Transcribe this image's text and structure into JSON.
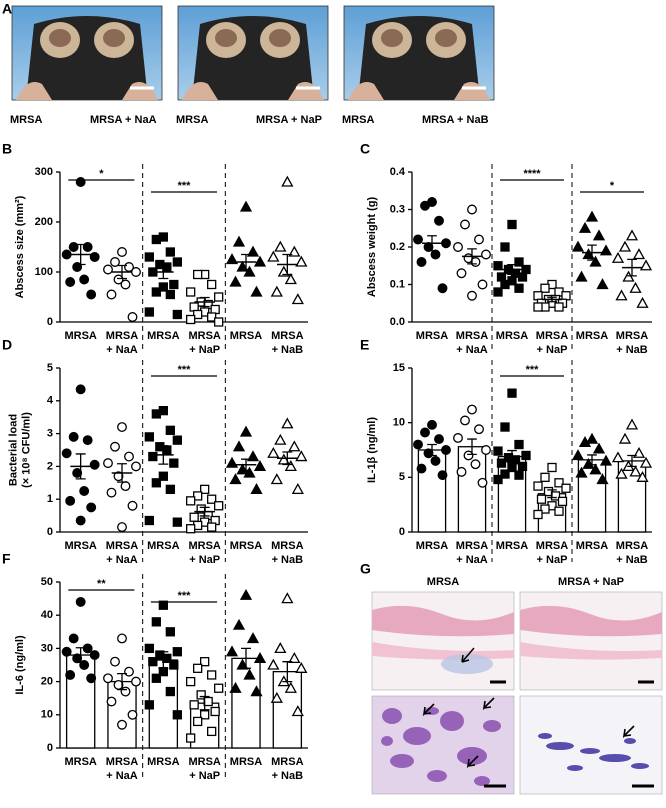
{
  "panel_a": {
    "letter": "A",
    "photos": [
      {
        "left": "MRSA",
        "right": "MRSA + NaA"
      },
      {
        "left": "MRSA",
        "right": "MRSA + NaP"
      },
      {
        "left": "MRSA",
        "right": "MRSA + NaB"
      }
    ]
  },
  "panel_g": {
    "letter": "G",
    "columns": [
      "MRSA",
      "MRSA + NaP"
    ]
  },
  "chart_data": [
    {
      "type": "strip",
      "panel": "B",
      "ylabel": [
        "Abscess size (mm²)"
      ],
      "ylim": [
        0,
        300
      ],
      "yticks": [
        0,
        100,
        200,
        300
      ],
      "groups": [
        {
          "label": [
            "MRSA"
          ],
          "marker": "circle",
          "filled": true,
          "values": [
            280,
            150,
            150,
            135,
            130,
            110,
            85,
            80,
            55
          ],
          "mean": 135,
          "sem": 20
        },
        {
          "label": [
            "MRSA",
            "+ NaA"
          ],
          "marker": "circle",
          "filled": false,
          "values": [
            140,
            120,
            110,
            105,
            100,
            85,
            75,
            55,
            10
          ],
          "mean": 100,
          "sem": 13
        },
        {
          "label": [
            "MRSA"
          ],
          "marker": "square",
          "filled": true,
          "values": [
            170,
            165,
            140,
            130,
            120,
            115,
            110,
            100,
            75,
            70,
            60,
            55,
            20,
            15
          ],
          "mean": 100,
          "sem": 13
        },
        {
          "label": [
            "MRSA",
            "+ NaP"
          ],
          "marker": "square",
          "filled": false,
          "values": [
            95,
            95,
            75,
            60,
            50,
            40,
            35,
            30,
            25,
            20,
            15,
            10,
            5,
            0
          ],
          "mean": 40,
          "sem": 9
        },
        {
          "label": [
            "MRSA"
          ],
          "marker": "triangle",
          "filled": true,
          "values": [
            230,
            160,
            140,
            125,
            120,
            110,
            100,
            80,
            60
          ],
          "mean": 120,
          "sem": 15
        },
        {
          "label": [
            "MRSA",
            "+ NaB"
          ],
          "marker": "triangle",
          "filled": false,
          "values": [
            280,
            150,
            140,
            130,
            120,
            100,
            85,
            60,
            45
          ],
          "mean": 115,
          "sem": 20
        }
      ],
      "significance": [
        {
          "text": "*",
          "groups": [
            0,
            1
          ]
        },
        {
          "text": "***",
          "groups": [
            2,
            3
          ]
        }
      ]
    },
    {
      "type": "strip",
      "panel": "C",
      "ylabel": [
        "Abscess weight (g)"
      ],
      "ylim": [
        0,
        0.4
      ],
      "yticks": [
        {
          "value": 0,
          "label": "0.0"
        },
        0.1,
        0.2,
        0.3,
        0.4
      ],
      "groups": [
        {
          "label": [
            "MRSA"
          ],
          "marker": "circle",
          "filled": true,
          "values": [
            0.32,
            0.31,
            0.27,
            0.22,
            0.21,
            0.2,
            0.18,
            0.16,
            0.09
          ],
          "mean": 0.21,
          "sem": 0.02
        },
        {
          "label": [
            "MRSA",
            "+ NaA"
          ],
          "marker": "circle",
          "filled": false,
          "values": [
            0.3,
            0.26,
            0.22,
            0.2,
            0.18,
            0.17,
            0.16,
            0.13,
            0.1,
            0.07
          ],
          "mean": 0.175,
          "sem": 0.02
        },
        {
          "label": [
            "MRSA"
          ],
          "marker": "square",
          "filled": true,
          "values": [
            0.26,
            0.2,
            0.16,
            0.15,
            0.14,
            0.14,
            0.13,
            0.12,
            0.12,
            0.11,
            0.1,
            0.09,
            0.08
          ],
          "mean": 0.14,
          "sem": 0.013
        },
        {
          "label": [
            "MRSA",
            "+ NaP"
          ],
          "marker": "square",
          "filled": false,
          "values": [
            0.1,
            0.09,
            0.08,
            0.07,
            0.07,
            0.06,
            0.06,
            0.05,
            0.05,
            0.05,
            0.04,
            0.04,
            0.04
          ],
          "mean": 0.06,
          "sem": 0.006
        },
        {
          "label": [
            "MRSA"
          ],
          "marker": "triangle",
          "filled": true,
          "values": [
            0.28,
            0.25,
            0.23,
            0.2,
            0.19,
            0.18,
            0.16,
            0.12,
            0.1
          ],
          "mean": 0.185,
          "sem": 0.02
        },
        {
          "label": [
            "MRSA",
            "+ NaB"
          ],
          "marker": "triangle",
          "filled": false,
          "values": [
            0.23,
            0.2,
            0.18,
            0.17,
            0.15,
            0.12,
            0.09,
            0.07,
            0.05
          ],
          "mean": 0.145,
          "sem": 0.022
        }
      ],
      "significance": [
        {
          "text": "****",
          "groups": [
            2,
            3
          ]
        },
        {
          "text": "*",
          "groups": [
            4,
            5
          ]
        }
      ]
    },
    {
      "type": "strip",
      "panel": "D",
      "ylabel": [
        "Bacterial load",
        "(× 10⁸ CFU/ml)"
      ],
      "ylim": [
        0,
        5
      ],
      "yticks": [
        0,
        1,
        2,
        3,
        4,
        5
      ],
      "groups": [
        {
          "label": [
            "MRSA"
          ],
          "marker": "circle",
          "filled": true,
          "values": [
            4.35,
            2.9,
            2.8,
            2.4,
            2.05,
            1.8,
            1.25,
            0.95,
            0.75,
            0.35
          ],
          "mean": 2.0,
          "sem": 0.38
        },
        {
          "label": [
            "MRSA",
            "+ NaA"
          ],
          "marker": "circle",
          "filled": false,
          "values": [
            3.2,
            2.6,
            2.3,
            2.1,
            2.0,
            1.7,
            1.4,
            1.2,
            0.8,
            0.15
          ],
          "mean": 1.8,
          "sem": 0.28
        },
        {
          "label": [
            "MRSA"
          ],
          "marker": "square",
          "filled": true,
          "values": [
            3.7,
            3.6,
            3.1,
            2.9,
            2.8,
            2.6,
            2.5,
            2.3,
            2.1,
            1.7,
            1.5,
            1.3,
            0.35,
            0.3
          ],
          "mean": 2.35,
          "sem": 0.28
        },
        {
          "label": [
            "MRSA",
            "+ NaP"
          ],
          "marker": "square",
          "filled": false,
          "values": [
            1.3,
            1.1,
            1.0,
            0.95,
            0.8,
            0.7,
            0.5,
            0.45,
            0.35,
            0.3,
            0.2,
            0.15,
            0.1
          ],
          "mean": 0.62,
          "sem": 0.13
        },
        {
          "label": [
            "MRSA"
          ],
          "marker": "triangle",
          "filled": true,
          "values": [
            3.05,
            2.6,
            2.3,
            2.1,
            2.0,
            1.9,
            1.8,
            1.6,
            1.3
          ],
          "mean": 2.05,
          "sem": 0.17
        },
        {
          "label": [
            "MRSA",
            "+ NaB"
          ],
          "marker": "triangle",
          "filled": false,
          "values": [
            3.3,
            2.8,
            2.6,
            2.4,
            2.3,
            2.2,
            2.0,
            1.6,
            1.3
          ],
          "mean": 2.25,
          "sem": 0.19
        }
      ],
      "significance": [
        {
          "text": "***",
          "groups": [
            2,
            3
          ]
        }
      ]
    },
    {
      "type": "bar-strip",
      "panel": "E",
      "ylabel": [
        "IL-1β (ng/ml)"
      ],
      "ylim": [
        0,
        15
      ],
      "yticks": [
        0,
        5,
        10,
        15
      ],
      "groups": [
        {
          "label": [
            "MRSA"
          ],
          "marker": "circle",
          "filled": true,
          "values": [
            9.8,
            9.1,
            8.5,
            8.0,
            7.5,
            7.2,
            6.5,
            5.8,
            5.2
          ],
          "mean": 7.5,
          "sem": 0.5
        },
        {
          "label": [
            "MRSA",
            "+ NaA"
          ],
          "marker": "circle",
          "filled": false,
          "values": [
            11.2,
            10.2,
            9.4,
            8.6,
            7.5,
            7.0,
            6.2,
            5.5,
            4.5
          ],
          "mean": 7.8,
          "sem": 0.7
        },
        {
          "label": [
            "MRSA"
          ],
          "marker": "square",
          "filled": true,
          "values": [
            12.7,
            9.6,
            8.0,
            7.4,
            7.0,
            6.8,
            6.6,
            6.3,
            6.0,
            5.9,
            5.3,
            5.2,
            4.8
          ],
          "mean": 6.9,
          "sem": 0.55
        },
        {
          "label": [
            "MRSA",
            "+ NaP"
          ],
          "marker": "square",
          "filled": false,
          "values": [
            5.9,
            5.0,
            4.5,
            4.2,
            4.0,
            3.7,
            3.3,
            3.0,
            2.8,
            2.4,
            2.1,
            1.9,
            1.6
          ],
          "mean": 3.5,
          "sem": 0.35
        },
        {
          "label": [
            "MRSA"
          ],
          "marker": "triangle",
          "filled": true,
          "values": [
            8.5,
            8.2,
            7.6,
            7.0,
            6.5,
            6.2,
            5.7,
            5.4,
            4.8
          ],
          "mean": 6.6,
          "sem": 0.45
        },
        {
          "label": [
            "MRSA",
            "+ NaB"
          ],
          "marker": "triangle",
          "filled": false,
          "values": [
            9.8,
            8.5,
            7.2,
            6.8,
            6.3,
            6.0,
            5.5,
            5.3,
            5.0
          ],
          "mean": 6.5,
          "sem": 0.5
        }
      ],
      "significance": [
        {
          "text": "***",
          "groups": [
            2,
            3
          ]
        }
      ]
    },
    {
      "type": "bar-strip",
      "panel": "F",
      "ylabel": [
        "IL-6 (ng/ml)"
      ],
      "ylim": [
        0,
        50
      ],
      "yticks": [
        0,
        10,
        20,
        30,
        40,
        50
      ],
      "groups": [
        {
          "label": [
            "MRSA"
          ],
          "marker": "circle",
          "filled": true,
          "values": [
            44,
            33,
            30,
            29,
            28,
            27,
            25,
            22,
            21
          ],
          "mean": 28,
          "sem": 2.2
        },
        {
          "label": [
            "MRSA",
            "+ NaA"
          ],
          "marker": "circle",
          "filled": false,
          "values": [
            33,
            26,
            23,
            21,
            20,
            19,
            17,
            14,
            10,
            7
          ],
          "mean": 20,
          "sem": 2.4
        },
        {
          "label": [
            "MRSA"
          ],
          "marker": "square",
          "filled": true,
          "values": [
            43,
            38,
            35,
            30,
            29,
            28,
            27,
            26,
            25,
            23,
            21,
            17,
            13,
            10
          ],
          "mean": 26.5,
          "sem": 2.5
        },
        {
          "label": [
            "MRSA",
            "+ NaP"
          ],
          "marker": "square",
          "filled": false,
          "values": [
            26,
            24,
            22,
            20,
            18,
            16,
            14,
            13,
            11,
            10,
            8,
            5,
            3
          ],
          "mean": 13.5,
          "sem": 2
        },
        {
          "label": [
            "MRSA"
          ],
          "marker": "triangle",
          "filled": true,
          "values": [
            46,
            37,
            33,
            29,
            27,
            25,
            22,
            18,
            17
          ],
          "mean": 27,
          "sem": 3
        },
        {
          "label": [
            "MRSA",
            "+ NaB"
          ],
          "marker": "triangle",
          "filled": false,
          "values": [
            45,
            30,
            27,
            25,
            24,
            20,
            18,
            15,
            11
          ],
          "mean": 23,
          "sem": 3
        }
      ],
      "significance": [
        {
          "text": "**",
          "groups": [
            0,
            1
          ]
        },
        {
          "text": "***",
          "groups": [
            2,
            3
          ]
        }
      ]
    }
  ]
}
